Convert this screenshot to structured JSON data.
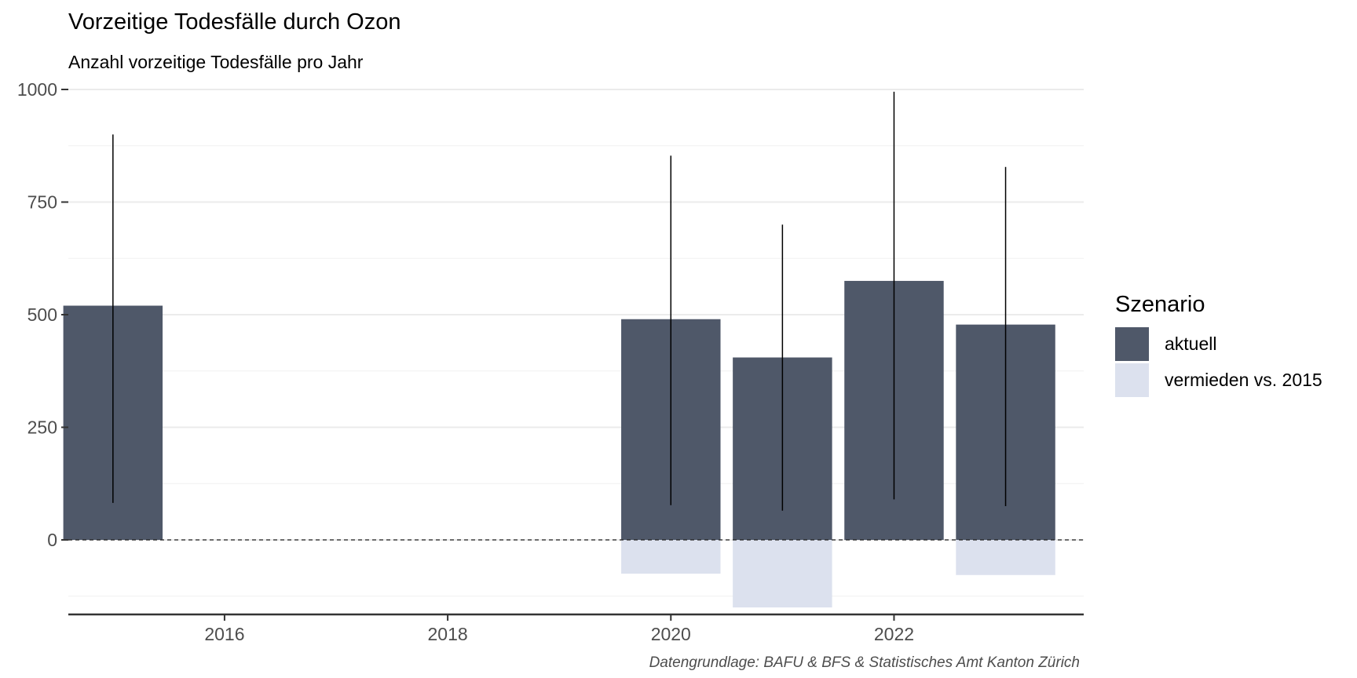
{
  "chart_data": {
    "type": "bar",
    "title": "Vorzeitige Todesfälle durch Ozon",
    "subtitle": "Anzahl vorzeitige Todesfälle pro Jahr",
    "caption": "Datengrundlage: BAFU & BFS & Statistisches Amt Kanton Zürich",
    "xlabel": "",
    "ylabel": "",
    "x_ticks": [
      2016,
      2018,
      2020,
      2022
    ],
    "y_ticks": [
      0,
      250,
      500,
      750,
      1000
    ],
    "xlim": [
      2014.6,
      2023.7
    ],
    "ylim": [
      -165,
      1000
    ],
    "grid": true,
    "zero_line": "dashed",
    "legend": {
      "title": "Szenario",
      "position": "right",
      "entries": [
        {
          "label": "aktuell",
          "color": "#4f5869"
        },
        {
          "label": "vermieden vs. 2015",
          "color": "#dce1ee"
        }
      ]
    },
    "series": [
      {
        "name": "aktuell",
        "color": "#4f5869",
        "x": [
          2015,
          2020,
          2021,
          2022,
          2023
        ],
        "values": [
          520,
          490,
          405,
          575,
          478
        ]
      },
      {
        "name": "vermieden vs. 2015",
        "color": "#dce1ee",
        "x": [
          2020,
          2021,
          2023
        ],
        "values": [
          -75,
          -150,
          -78
        ]
      }
    ],
    "error_bars": [
      {
        "x": 2015,
        "low": 82,
        "high": 900
      },
      {
        "x": 2020,
        "low": 77,
        "high": 853
      },
      {
        "x": 2021,
        "low": 65,
        "high": 700
      },
      {
        "x": 2022,
        "low": 90,
        "high": 995
      },
      {
        "x": 2023,
        "low": 75,
        "high": 828
      }
    ]
  }
}
